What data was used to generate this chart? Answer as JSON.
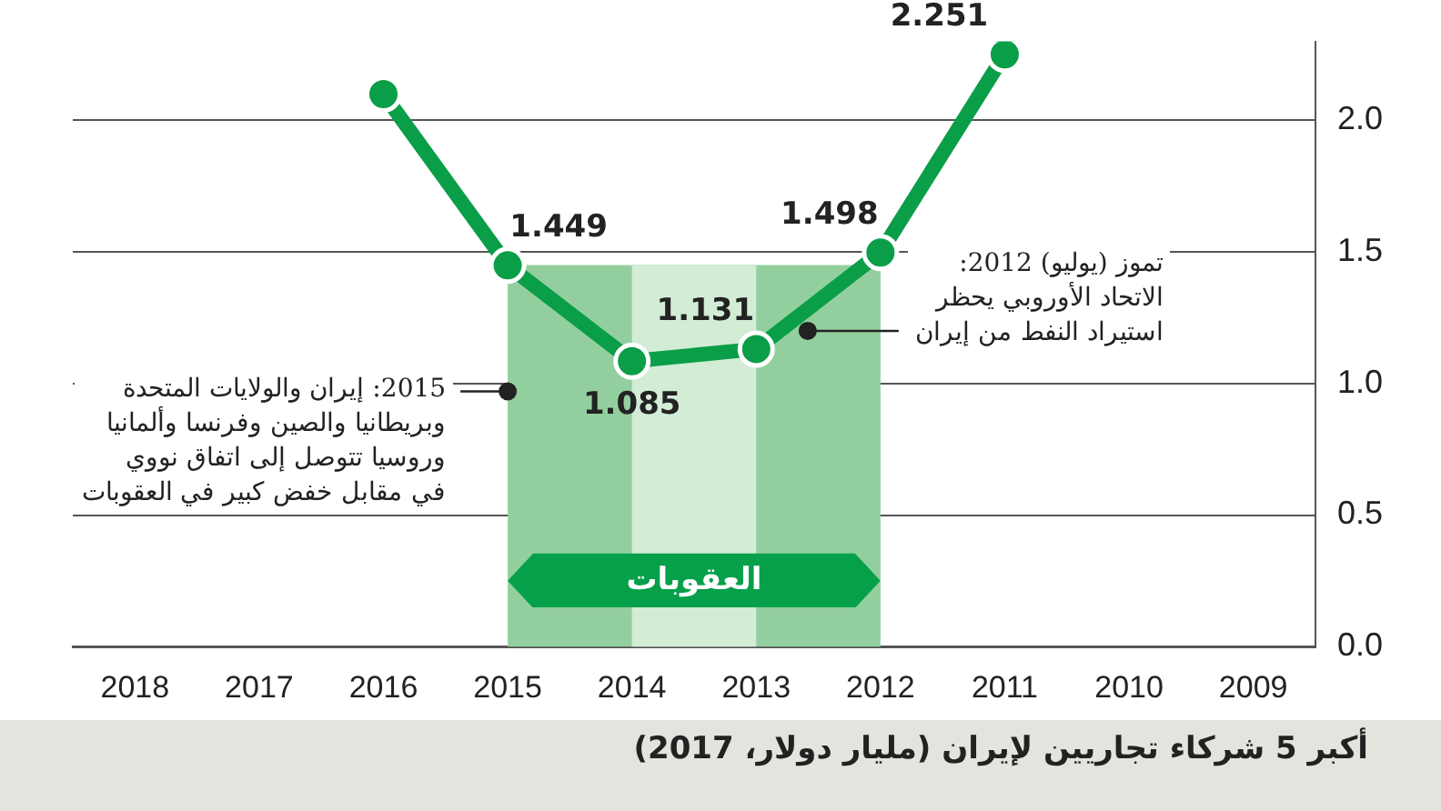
{
  "chart_data": {
    "type": "line",
    "categories": [
      "2018",
      "2017",
      "2016",
      "2015",
      "2014",
      "2013",
      "2012",
      "2011",
      "2010",
      "2009"
    ],
    "series": [
      {
        "color": "#0a9e48",
        "values": [
          null,
          null,
          2.1,
          1.449,
          1.085,
          1.131,
          1.498,
          2.251,
          null,
          null
        ],
        "value_labels": [
          null,
          null,
          null,
          "1.449",
          "1.085",
          "1.131",
          "1.498",
          "2.251",
          null,
          null
        ]
      }
    ],
    "ylim": [
      0,
      2.3
    ],
    "yticks": [
      {
        "value": 0,
        "label": "0.0"
      },
      {
        "value": 0.5,
        "label": "0.5"
      },
      {
        "value": 1,
        "label": "1.0"
      },
      {
        "value": 1.5,
        "label": "1.5"
      },
      {
        "value": 2,
        "label": "2.0"
      }
    ],
    "grid": "y",
    "marker": "circle",
    "line_style": "solid",
    "legend": false,
    "bands": [
      {
        "axis": "x",
        "from": "2015",
        "to": "2012",
        "label": "العقوبات",
        "color": "#93cf9e"
      },
      {
        "axis": "x",
        "from": "2014",
        "to": "2013",
        "color": "#d3ecd6"
      }
    ],
    "annotations": [
      {
        "text": "2015: إيران والولايات المتحدة\nوبريطانيا والصين وفرنسا وألمانيا\nوروسيا تتوصل إلى اتفاق نووي\nفي مقابل خفض كبير في العقوبات",
        "x": "2015",
        "y": 0.97
      },
      {
        "text": "تموز (يوليو) 2012:\nالاتحاد الأوروبي يحظر\nاستيراد النفط من إيران",
        "x": "2012",
        "y": 1.2
      },
      "أكبر 5 شركاء تجاريين لإيران (مليار دولار، 2017)"
    ]
  }
}
